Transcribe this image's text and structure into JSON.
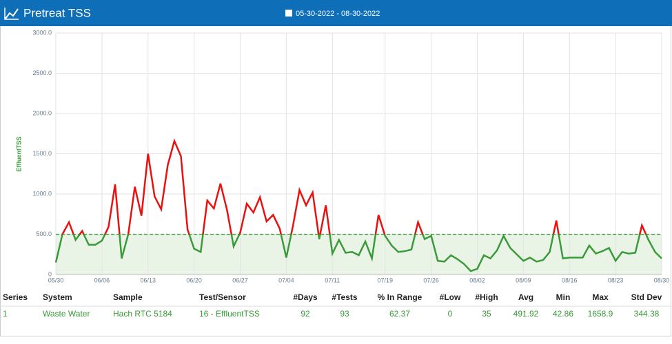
{
  "chart_data": {
    "type": "line",
    "title": "Pretreat TSS",
    "date_range": "05-30-2022 - 08-30-2022",
    "ylabel": "EffluentTSS",
    "x": [
      "05/30",
      "05/31",
      "06/01",
      "06/02",
      "06/03",
      "06/04",
      "06/05",
      "06/06",
      "06/07",
      "06/08",
      "06/09",
      "06/10",
      "06/11",
      "06/12",
      "06/13",
      "06/14",
      "06/15",
      "06/16",
      "06/17",
      "06/18",
      "06/19",
      "06/20",
      "06/21",
      "06/22",
      "06/23",
      "06/24",
      "06/25",
      "06/26",
      "06/27",
      "06/28",
      "06/29",
      "06/30",
      "07/01",
      "07/02",
      "07/03",
      "07/04",
      "07/05",
      "07/06",
      "07/07",
      "07/08",
      "07/09",
      "07/10",
      "07/11",
      "07/12",
      "07/13",
      "07/14",
      "07/15",
      "07/16",
      "07/17",
      "07/18",
      "07/19",
      "07/20",
      "07/21",
      "07/22",
      "07/23",
      "07/24",
      "07/25",
      "07/26",
      "07/27",
      "07/28",
      "07/29",
      "07/30",
      "07/31",
      "08/01",
      "08/02",
      "08/03",
      "08/04",
      "08/05",
      "08/06",
      "08/07",
      "08/08",
      "08/09",
      "08/10",
      "08/11",
      "08/12",
      "08/13",
      "08/14",
      "08/15",
      "08/16",
      "08/17",
      "08/18",
      "08/19",
      "08/20",
      "08/21",
      "08/22",
      "08/23",
      "08/24",
      "08/25",
      "08/26",
      "08/27",
      "08/28",
      "08/29",
      "08/30"
    ],
    "values": [
      150,
      500,
      650,
      430,
      540,
      370,
      370,
      420,
      590,
      1120,
      200,
      500,
      1090,
      730,
      1500,
      970,
      810,
      1360,
      1659,
      1470,
      560,
      320,
      280,
      920,
      820,
      1130,
      800,
      350,
      520,
      880,
      770,
      960,
      660,
      740,
      570,
      210,
      600,
      1050,
      860,
      1020,
      440,
      860,
      260,
      430,
      270,
      280,
      240,
      410,
      200,
      740,
      480,
      360,
      280,
      290,
      310,
      650,
      440,
      480,
      170,
      160,
      240,
      190,
      130,
      43,
      70,
      240,
      200,
      300,
      480,
      330,
      250,
      170,
      210,
      160,
      180,
      280,
      670,
      200,
      210,
      210,
      210,
      360,
      260,
      290,
      330,
      170,
      280,
      260,
      270,
      610,
      430,
      280,
      200
    ],
    "threshold": 500,
    "color_above": "#e8110f",
    "color_below": "#3a9a3a",
    "band_color": "#e9f4e6",
    "ylim": [
      0,
      3000
    ],
    "yticks": [
      {
        "value": 0,
        "label": "0"
      },
      {
        "value": 500,
        "label": "500.0"
      },
      {
        "value": 1000,
        "label": "1000.0"
      },
      {
        "value": 1500,
        "label": "1500.0"
      },
      {
        "value": 2000,
        "label": "2000.0"
      },
      {
        "value": 2500,
        "label": "2500.0"
      },
      {
        "value": 3000,
        "label": "3000.0"
      }
    ],
    "xticks": [
      "05/30",
      "06/06",
      "06/13",
      "06/20",
      "06/27",
      "07/04",
      "07/11",
      "07/19",
      "07/26",
      "08/02",
      "08/09",
      "08/16",
      "08/23",
      "08/30"
    ],
    "grid": true
  },
  "table": {
    "header": [
      "Series",
      "System",
      "Sample",
      "Test/Sensor",
      "#Days",
      "#Tests",
      "% In Range",
      "#Low",
      "#High",
      "Avg",
      "Min",
      "Max",
      "Std Dev"
    ],
    "rows": [
      [
        "1",
        "Waste Water",
        "Hach RTC 5184",
        "16 - EffluentTSS",
        "92",
        "93",
        "62.37",
        "0",
        "35",
        "491.92",
        "42.86",
        "1658.9",
        "344.38"
      ]
    ]
  }
}
